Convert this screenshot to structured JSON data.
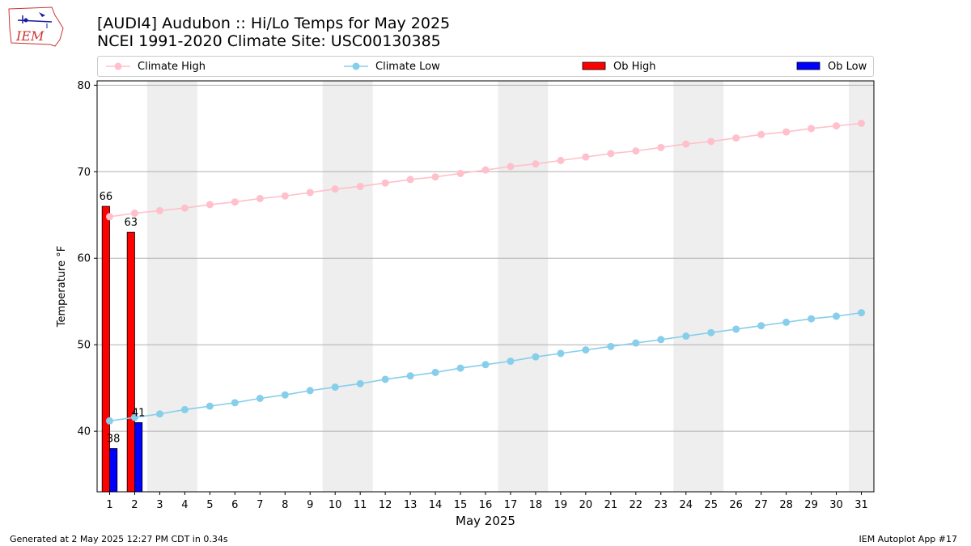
{
  "header": {
    "title": "[AUDI4] Audubon :: Hi/Lo Temps for May 2025",
    "subtitle": "NCEI 1991-2020 Climate Site: USC00130385"
  },
  "logo": {
    "text": "IEM",
    "icon": "iem-iowa-logo-icon"
  },
  "footer": {
    "left": "Generated at 2 May 2025 12:27 PM CDT in 0.34s",
    "right": "IEM Autoplot App #17"
  },
  "legend": {
    "climate_high": "Climate High",
    "climate_low": "Climate Low",
    "ob_high": "Ob High",
    "ob_low": "Ob Low"
  },
  "chart_data": {
    "type": "bar",
    "xlabel": "May 2025",
    "ylabel": "Temperature °F",
    "ylim": [
      33,
      80.5
    ],
    "yticks": [
      40,
      50,
      60,
      70,
      80
    ],
    "days": [
      1,
      2,
      3,
      4,
      5,
      6,
      7,
      8,
      9,
      10,
      11,
      12,
      13,
      14,
      15,
      16,
      17,
      18,
      19,
      20,
      21,
      22,
      23,
      24,
      25,
      26,
      27,
      28,
      29,
      30,
      31
    ],
    "weekend_shading": [
      [
        3,
        4
      ],
      [
        10,
        11
      ],
      [
        17,
        18
      ],
      [
        24,
        25
      ],
      [
        31,
        31
      ]
    ],
    "grid": true,
    "legend_position": "top",
    "series": [
      {
        "name": "Climate High",
        "kind": "line",
        "color": "#ffc0cb",
        "values": [
          64.8,
          65.2,
          65.5,
          65.8,
          66.2,
          66.5,
          66.9,
          67.2,
          67.6,
          68.0,
          68.3,
          68.7,
          69.1,
          69.4,
          69.8,
          70.2,
          70.6,
          70.9,
          71.3,
          71.7,
          72.1,
          72.4,
          72.8,
          73.2,
          73.5,
          73.9,
          74.3,
          74.6,
          75.0,
          75.3,
          75.6
        ]
      },
      {
        "name": "Climate Low",
        "kind": "line",
        "color": "#87ceeb",
        "values": [
          41.2,
          41.6,
          42.0,
          42.5,
          42.9,
          43.3,
          43.8,
          44.2,
          44.7,
          45.1,
          45.5,
          46.0,
          46.4,
          46.8,
          47.3,
          47.7,
          48.1,
          48.6,
          49.0,
          49.4,
          49.8,
          50.2,
          50.6,
          51.0,
          51.4,
          51.8,
          52.2,
          52.6,
          53.0,
          53.3,
          53.7
        ]
      },
      {
        "name": "Ob High",
        "kind": "bar",
        "color": "#ff0000",
        "values": [
          66,
          63
        ],
        "labels": [
          "66",
          "63"
        ]
      },
      {
        "name": "Ob Low",
        "kind": "bar",
        "color": "#0000ff",
        "values": [
          38,
          41
        ],
        "labels": [
          "38",
          "41"
        ]
      }
    ]
  }
}
